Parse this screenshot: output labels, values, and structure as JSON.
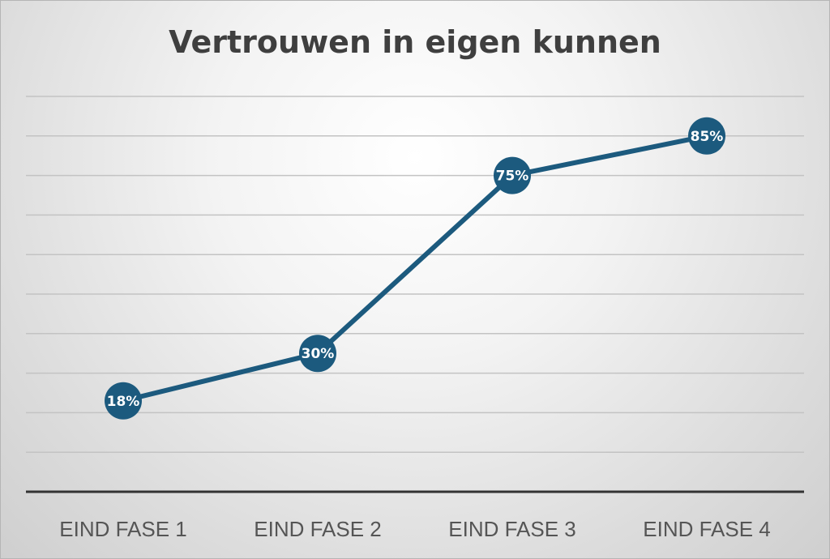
{
  "chart_data": {
    "type": "line",
    "title": "Vertrouwen in eigen kunnen",
    "xlabel": "",
    "ylabel": "",
    "categories": [
      "EIND FASE 1",
      "EIND FASE 2",
      "EIND FASE 3",
      "EIND FASE 4"
    ],
    "series": [
      {
        "values": [
          18,
          30,
          75,
          85
        ],
        "labels": [
          "18%",
          "30%",
          "75%",
          "85%"
        ],
        "color": "#1c5a7e"
      }
    ],
    "ylim": [
      -5,
      95
    ],
    "ytick_step": 10,
    "grid": true,
    "legend": "none"
  }
}
